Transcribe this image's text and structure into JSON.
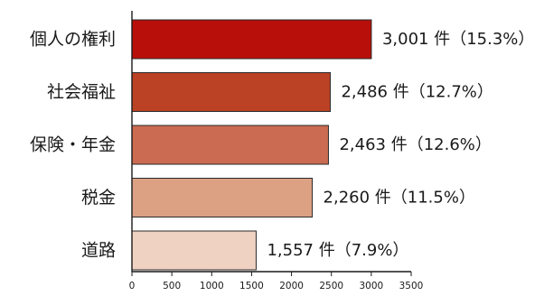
{
  "chart_data": {
    "type": "bar",
    "orientation": "horizontal",
    "categories": [
      "個人の権利",
      "社会福祉",
      "保険・年金",
      "税金",
      "道路"
    ],
    "values": [
      3001,
      2486,
      2463,
      2260,
      1557
    ],
    "value_labels": [
      "3,001 件（15.3%）",
      "2,486 件（12.7%）",
      "2,463 件（12.6%）",
      "2,260 件（11.5%）",
      "1,557 件（7.9%）"
    ],
    "bar_colors": [
      "#B80F0A",
      "#BC4225",
      "#CB6B51",
      "#DCA083",
      "#F0D2C3"
    ],
    "xlim": [
      0,
      3500
    ],
    "xticks": [
      0,
      500,
      1000,
      1500,
      2000,
      2500,
      3000,
      3500
    ],
    "xtick_labels": [
      "0",
      "500",
      "1000",
      "1500",
      "2000",
      "2500",
      "3000",
      "3500"
    ],
    "title": "",
    "xlabel": "",
    "ylabel": "",
    "grid": false,
    "legend": false
  }
}
